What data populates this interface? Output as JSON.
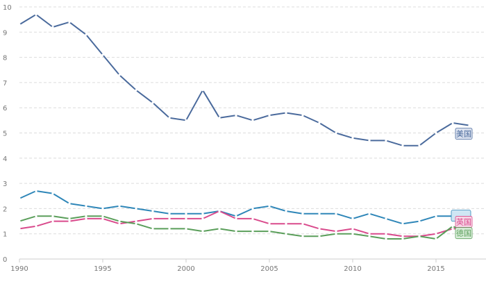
{
  "chart_data": {
    "type": "line",
    "title": "",
    "xlabel": "",
    "ylabel": "",
    "x": [
      1990,
      1991,
      1992,
      1993,
      1994,
      1995,
      1996,
      1997,
      1998,
      1999,
      2000,
      2001,
      2002,
      2003,
      2004,
      2005,
      2006,
      2007,
      2008,
      2009,
      2010,
      2011,
      2012,
      2013,
      2014,
      2015,
      2016,
      2017
    ],
    "xlim": [
      1990,
      2018
    ],
    "ylim": [
      0,
      10
    ],
    "x_ticks": [
      1990,
      1995,
      2000,
      2005,
      2010,
      2015
    ],
    "y_ticks": [
      0,
      1,
      2,
      3,
      4,
      5,
      6,
      7,
      8,
      9,
      10
    ],
    "grid": "horizontal dashed",
    "legend": "none (labels at line ends)",
    "series": [
      {
        "name": "美国",
        "label": "美国",
        "color": "#4a6a9c",
        "label_bg": "#dde3f0",
        "values": [
          9.3,
          9.7,
          9.2,
          9.4,
          8.9,
          8.1,
          7.3,
          6.7,
          6.2,
          5.6,
          5.5,
          6.7,
          5.6,
          5.7,
          5.5,
          5.7,
          5.8,
          5.7,
          5.4,
          5.0,
          4.8,
          4.7,
          4.7,
          4.5,
          4.5,
          5.0,
          5.4,
          5.3
        ]
      },
      {
        "name": "",
        "label": "",
        "color": "#2e86b8",
        "label_bg": "#cfe6f4",
        "values": [
          2.4,
          2.7,
          2.6,
          2.2,
          2.1,
          2.0,
          2.1,
          2.0,
          1.9,
          1.8,
          1.8,
          1.8,
          1.9,
          1.7,
          2.0,
          2.1,
          1.9,
          1.8,
          1.8,
          1.8,
          1.6,
          1.8,
          1.6,
          1.4,
          1.5,
          1.7,
          1.7,
          1.8
        ]
      },
      {
        "name": "英国",
        "label": "英国",
        "color": "#d94a8c",
        "label_bg": "#f7d6e6",
        "values": [
          1.2,
          1.3,
          1.5,
          1.5,
          1.6,
          1.6,
          1.4,
          1.5,
          1.6,
          1.6,
          1.6,
          1.6,
          1.9,
          1.6,
          1.6,
          1.4,
          1.4,
          1.4,
          1.2,
          1.1,
          1.2,
          1.0,
          1.0,
          0.9,
          0.9,
          1.0,
          1.2,
          1.2
        ]
      },
      {
        "name": "德国",
        "label": "德国",
        "color": "#5a9e5a",
        "label_bg": "#dcefdc",
        "values": [
          1.5,
          1.7,
          1.7,
          1.6,
          1.7,
          1.7,
          1.5,
          1.4,
          1.2,
          1.2,
          1.2,
          1.1,
          1.2,
          1.1,
          1.1,
          1.1,
          1.0,
          0.9,
          0.9,
          1.0,
          1.0,
          0.9,
          0.8,
          0.8,
          0.9,
          0.8,
          1.3,
          1.0
        ]
      }
    ]
  }
}
